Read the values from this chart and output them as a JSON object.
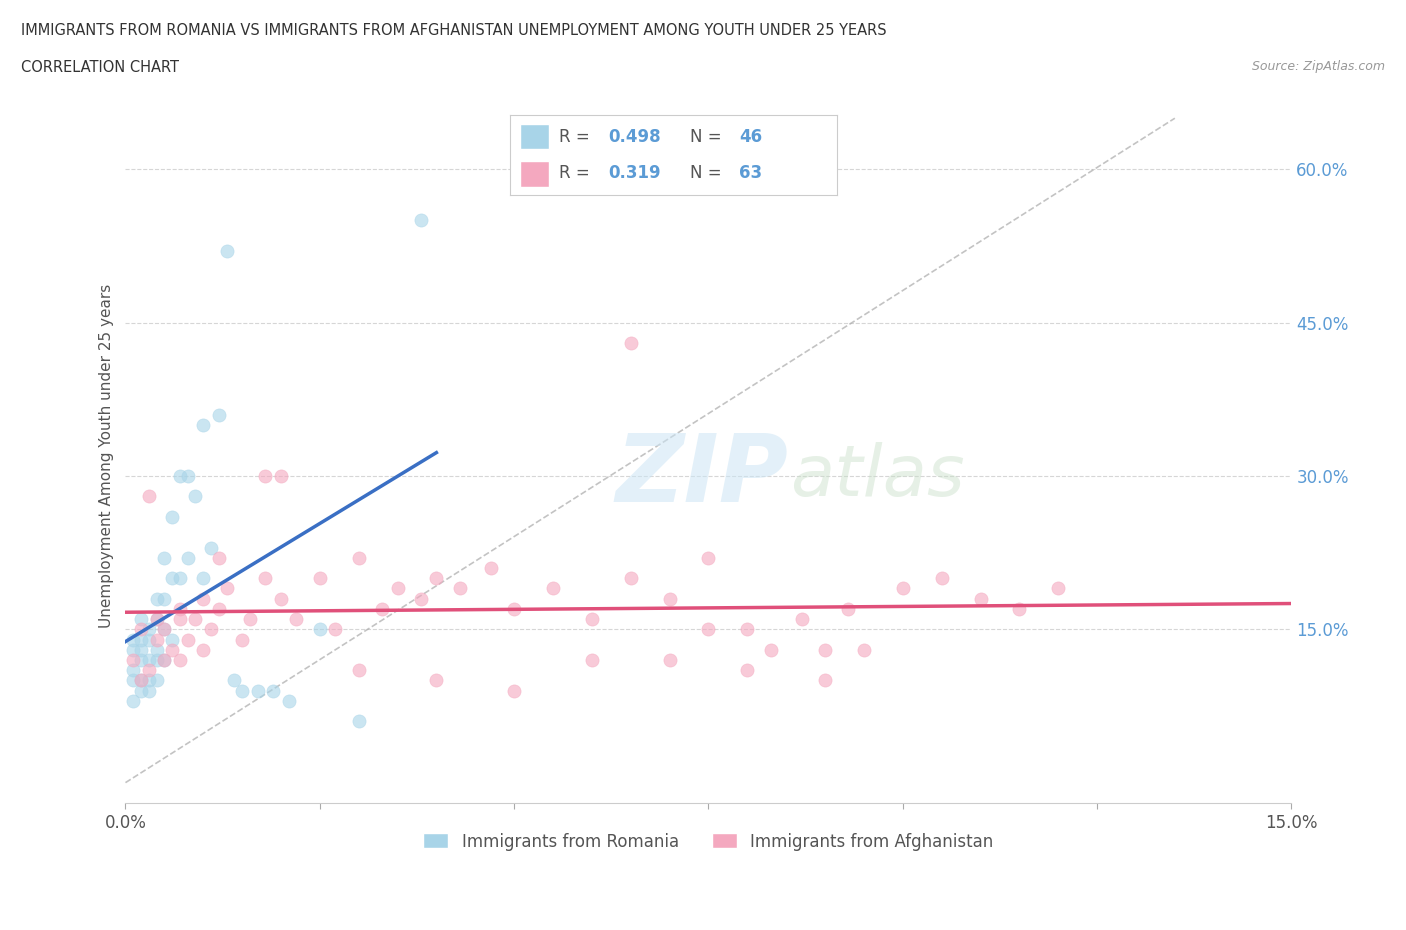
{
  "title_line1": "IMMIGRANTS FROM ROMANIA VS IMMIGRANTS FROM AFGHANISTAN UNEMPLOYMENT AMONG YOUTH UNDER 25 YEARS",
  "title_line2": "CORRELATION CHART",
  "source": "Source: ZipAtlas.com",
  "ylabel": "Unemployment Among Youth under 25 years",
  "xlim": [
    0.0,
    0.15
  ],
  "ylim": [
    -0.02,
    0.66
  ],
  "romania_color": "#a8d4e8",
  "afghanistan_color": "#f4a8bf",
  "romania_line_color": "#3a6fc4",
  "afghanistan_line_color": "#e0507a",
  "romania_R": 0.498,
  "romania_N": 46,
  "afghanistan_R": 0.319,
  "afghanistan_N": 63,
  "background_color": "#ffffff",
  "grid_color": "#cccccc",
  "ref_line_color": "#aaaaaa",
  "romania_x": [
    0.001,
    0.001,
    0.001,
    0.001,
    0.001,
    0.002,
    0.002,
    0.002,
    0.002,
    0.002,
    0.002,
    0.003,
    0.003,
    0.003,
    0.003,
    0.003,
    0.004,
    0.004,
    0.004,
    0.004,
    0.004,
    0.005,
    0.005,
    0.005,
    0.005,
    0.006,
    0.006,
    0.006,
    0.007,
    0.007,
    0.008,
    0.008,
    0.009,
    0.01,
    0.01,
    0.011,
    0.012,
    0.013,
    0.014,
    0.015,
    0.017,
    0.019,
    0.021,
    0.025,
    0.03,
    0.038
  ],
  "romania_y": [
    0.08,
    0.1,
    0.11,
    0.13,
    0.14,
    0.09,
    0.1,
    0.12,
    0.13,
    0.14,
    0.16,
    0.09,
    0.1,
    0.12,
    0.14,
    0.15,
    0.1,
    0.12,
    0.13,
    0.16,
    0.18,
    0.12,
    0.15,
    0.18,
    0.22,
    0.14,
    0.2,
    0.26,
    0.2,
    0.3,
    0.22,
    0.3,
    0.28,
    0.2,
    0.35,
    0.23,
    0.36,
    0.52,
    0.1,
    0.09,
    0.09,
    0.09,
    0.08,
    0.15,
    0.06,
    0.55
  ],
  "afghanistan_x": [
    0.001,
    0.002,
    0.002,
    0.003,
    0.004,
    0.004,
    0.005,
    0.006,
    0.007,
    0.007,
    0.008,
    0.009,
    0.01,
    0.011,
    0.012,
    0.013,
    0.015,
    0.016,
    0.018,
    0.02,
    0.022,
    0.025,
    0.027,
    0.03,
    0.033,
    0.035,
    0.038,
    0.04,
    0.043,
    0.047,
    0.05,
    0.055,
    0.06,
    0.065,
    0.07,
    0.075,
    0.08,
    0.083,
    0.087,
    0.09,
    0.093,
    0.095,
    0.065,
    0.07,
    0.075,
    0.1,
    0.105,
    0.11,
    0.115,
    0.12,
    0.04,
    0.05,
    0.06,
    0.08,
    0.09,
    0.03,
    0.02,
    0.01,
    0.005,
    0.003,
    0.007,
    0.012,
    0.018
  ],
  "afghanistan_y": [
    0.12,
    0.1,
    0.15,
    0.11,
    0.14,
    0.16,
    0.15,
    0.13,
    0.12,
    0.17,
    0.14,
    0.16,
    0.18,
    0.15,
    0.17,
    0.19,
    0.14,
    0.16,
    0.2,
    0.18,
    0.16,
    0.2,
    0.15,
    0.22,
    0.17,
    0.19,
    0.18,
    0.2,
    0.19,
    0.21,
    0.17,
    0.19,
    0.16,
    0.2,
    0.18,
    0.22,
    0.15,
    0.13,
    0.16,
    0.13,
    0.17,
    0.13,
    0.43,
    0.12,
    0.15,
    0.19,
    0.2,
    0.18,
    0.17,
    0.19,
    0.1,
    0.09,
    0.12,
    0.11,
    0.1,
    0.11,
    0.3,
    0.13,
    0.12,
    0.28,
    0.16,
    0.22,
    0.3
  ]
}
